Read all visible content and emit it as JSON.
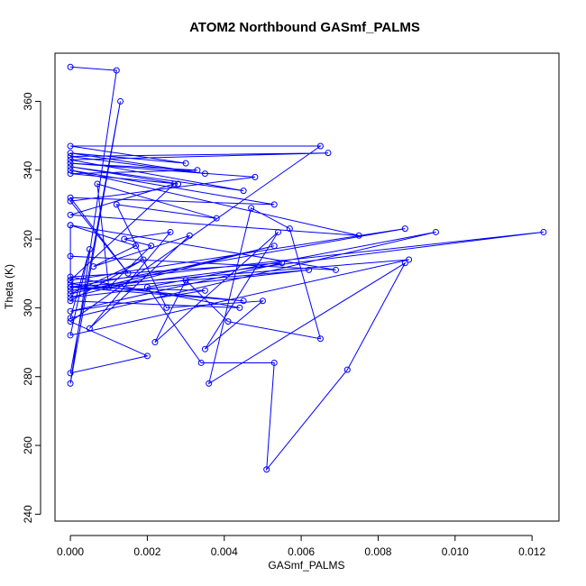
{
  "chart_data": {
    "type": "line",
    "title": "ATOM2 Northbound GASmf_PALMS",
    "xlabel": "GASmf_PALMS",
    "ylabel": "Theta (K)",
    "xlim": [
      -0.0004,
      0.0127
    ],
    "ylim": [
      238,
      374
    ],
    "xticks": [
      "0.000",
      "0.002",
      "0.004",
      "0.006",
      "0.008",
      "0.010",
      "0.012"
    ],
    "yticks": [
      "240",
      "260",
      "280",
      "300",
      "320",
      "340",
      "360"
    ],
    "series": [
      {
        "color": "#0000ff",
        "markers": "open-circle",
        "x": [
          0.0,
          0.0012,
          0.0,
          0.0013,
          0.0,
          0.002,
          0.0,
          0.0065,
          0.0,
          0.003,
          0.0,
          0.0035,
          0.0,
          0.0067,
          0.0,
          0.0045,
          0.0,
          0.0028,
          0.0,
          0.0033,
          0.0,
          0.0048,
          0.0,
          0.0015,
          0.0,
          0.0053,
          0.0,
          0.0075,
          0.0,
          0.0027,
          0.0,
          0.0087,
          0.0,
          0.0035,
          0.0,
          0.0055,
          0.0,
          0.0044,
          0.0,
          0.0019,
          0.0,
          0.0053,
          0.0,
          0.0062,
          0.0,
          0.0123,
          0.0,
          0.0045,
          0.0,
          0.0088,
          0.0,
          0.0005,
          0.0,
          0.0095,
          0.002,
          0.0034,
          0.0053,
          0.0051,
          0.0072,
          0.0087,
          0.0036,
          0.0047,
          0.0057,
          0.0065,
          0.0041,
          0.003,
          0.0022,
          0.0054,
          0.0035,
          0.005,
          0.0025,
          0.0012,
          0.0038,
          0.0007,
          0.001,
          0.0021,
          0.0014,
          0.0026,
          0.0005,
          0.0031,
          0.0006,
          0.0017,
          0.0,
          0.0069,
          0.0,
          0.0,
          0.0
        ],
        "y": [
          370,
          369,
          278,
          360,
          281,
          286,
          296,
          347,
          347,
          342,
          345,
          339,
          344,
          345,
          343,
          334,
          341,
          336,
          339,
          340,
          342,
          338,
          331,
          310,
          332,
          330,
          340,
          321,
          327,
          336,
          308,
          323,
          306,
          305,
          299,
          313,
          309,
          300,
          302,
          314,
          304,
          318,
          303,
          311,
          305,
          322,
          307,
          302,
          306,
          314,
          292,
          317,
          297,
          322,
          306,
          284,
          284,
          253,
          282,
          313,
          278,
          329,
          323,
          291,
          296,
          308,
          290,
          322,
          288,
          302,
          300,
          330,
          326,
          336,
          306,
          318,
          320,
          322,
          294,
          321,
          312,
          318,
          324,
          311,
          315,
          308,
          324
        ]
      }
    ]
  }
}
